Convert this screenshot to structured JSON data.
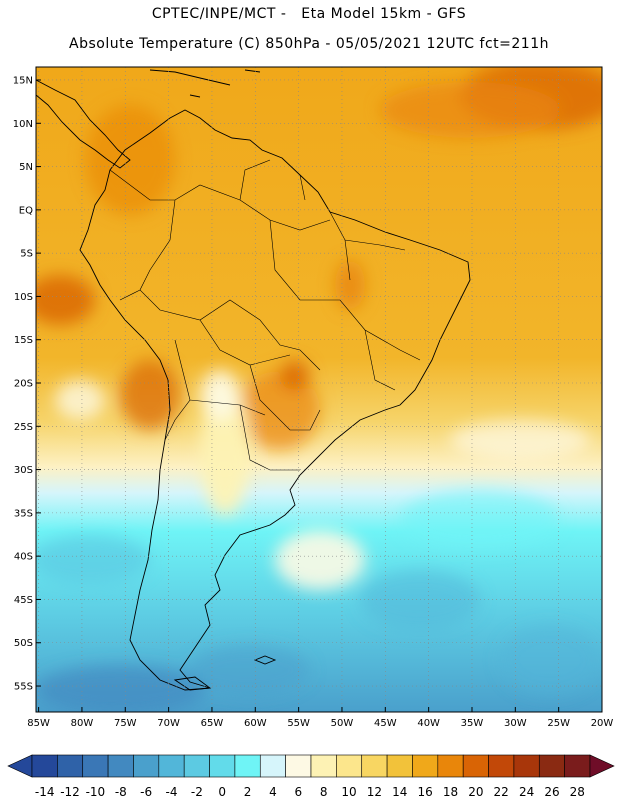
{
  "header": {
    "line1": "CPTEC/INPE/MCT -   Eta Model 15km - GFS",
    "line2": "Absolute Temperature (C) 850hPa - 05/05/2021 12UTC fct=211h"
  },
  "map": {
    "lat_labels": [
      "15N",
      "10N",
      "5N",
      "EQ",
      "5S",
      "10S",
      "15S",
      "20S",
      "25S",
      "30S",
      "35S",
      "40S",
      "45S",
      "50S",
      "55S"
    ],
    "lat_values": [
      15,
      10,
      5,
      0,
      -5,
      -10,
      -15,
      -20,
      -25,
      -30,
      -35,
      -40,
      -45,
      -50,
      -55
    ],
    "lon_labels": [
      "85W",
      "80W",
      "75W",
      "70W",
      "65W",
      "60W",
      "55W",
      "50W",
      "45W",
      "40W",
      "35W",
      "30W",
      "25W",
      "20W"
    ],
    "lon_values": [
      -85,
      -80,
      -75,
      -70,
      -65,
      -60,
      -55,
      -50,
      -45,
      -40,
      -35,
      -30,
      -25,
      -20
    ],
    "extent": {
      "lon_min": -85.3,
      "lon_max": -20.0,
      "lat_min": -58.0,
      "lat_max": 16.5
    }
  },
  "colorbar": {
    "labels": [
      "-14",
      "-12",
      "-10",
      "-8",
      "-6",
      "-4",
      "-2",
      "0",
      "2",
      "4",
      "6",
      "8",
      "10",
      "12",
      "14",
      "16",
      "18",
      "20",
      "22",
      "24",
      "26",
      "28"
    ],
    "colors": [
      "#24489a",
      "#2f62a8",
      "#3a77b6",
      "#4289c0",
      "#4aa0cc",
      "#52b6d9",
      "#5ccae2",
      "#62dbea",
      "#6ff4f6",
      "#d6f5fb",
      "#fdf9e4",
      "#fdf2b4",
      "#fce68c",
      "#f8d662",
      "#f2c23a",
      "#f0a81a",
      "#e9860a",
      "#d96405",
      "#c24808",
      "#a8360a",
      "#8a2a12",
      "#7a1c1c"
    ],
    "low_arrow_color": "#24489a",
    "high_arrow_color": "#6f0d28"
  }
}
